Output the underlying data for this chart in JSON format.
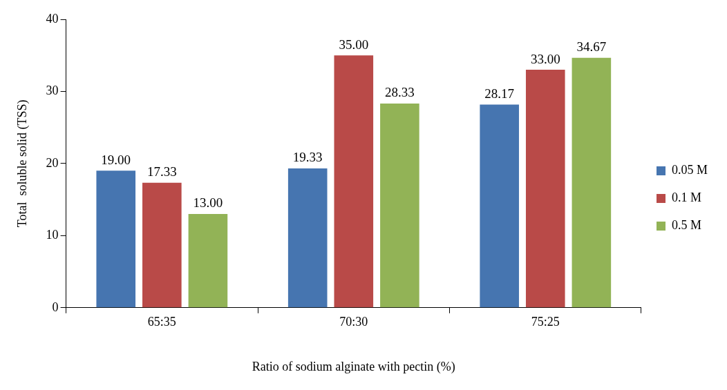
{
  "chart_data": {
    "type": "bar",
    "xlabel": "Ratio of sodium alginate with pectin (%)",
    "ylabel": "Total  soluble solid (TSS)",
    "categories": [
      "65:35",
      "70:30",
      "75:25"
    ],
    "series": [
      {
        "name": "0.05 M",
        "color": "#4675b0",
        "values": [
          19.0,
          19.33,
          28.17
        ],
        "value_labels": [
          "19.00",
          "19.33",
          "28.17"
        ]
      },
      {
        "name": "0.1 M",
        "color": "#b94a48",
        "values": [
          17.33,
          35.0,
          33.0
        ],
        "value_labels": [
          "17.33",
          "35.00",
          "33.00"
        ]
      },
      {
        "name": "0.5 M",
        "color": "#92b356",
        "values": [
          13.0,
          28.33,
          34.67
        ],
        "value_labels": [
          "13.00",
          "28.33",
          "34.67"
        ]
      }
    ],
    "ylim": [
      0,
      40
    ],
    "yticks": [
      0,
      10,
      20,
      30,
      40
    ],
    "grid": false,
    "legend": "right"
  }
}
